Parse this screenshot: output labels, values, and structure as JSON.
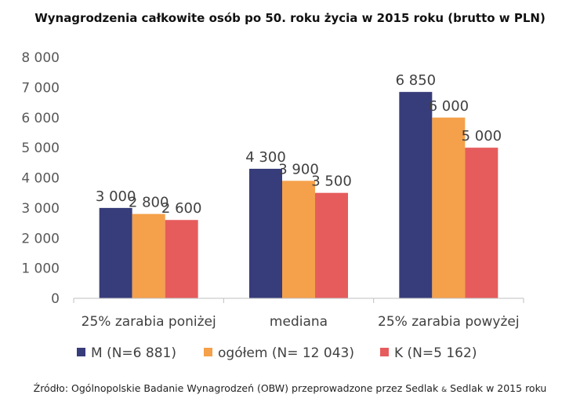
{
  "title": "Wynagrodzenia całkowite osób po 50. roku życia w 2015 roku (brutto w PLN)",
  "source": {
    "prefix": "Źródło: Ogólnopolskie Badanie Wynagrodzeń (OBW) przeprowadzone przez Sedlak ",
    "amp": "&",
    "suffix": " Sedlak w 2015 roku"
  },
  "chart_data": {
    "type": "bar",
    "title": "Wynagrodzenia całkowite osób po 50. roku życia w 2015 roku (brutto w PLN)",
    "categories": [
      "25% zarabia poniżej",
      "mediana",
      "25% zarabia powyżej"
    ],
    "series": [
      {
        "name": "M (N=6 881)",
        "values": [
          3000,
          4300,
          6850
        ],
        "labels": [
          "3 000",
          "4 300",
          "6 850"
        ],
        "color": "#373c7a"
      },
      {
        "name": "ogółem (N= 12 043)",
        "values": [
          2800,
          3900,
          6000
        ],
        "labels": [
          "2 800",
          "3 900",
          "6 000"
        ],
        "color": "#f5a04a"
      },
      {
        "name": "K (N=5 162)",
        "values": [
          2600,
          3500,
          5000
        ],
        "labels": [
          "2 600",
          "3 500",
          "5 000"
        ],
        "color": "#e65c5c"
      }
    ],
    "ylim": [
      0,
      8000
    ],
    "yticks": [
      0,
      1000,
      2000,
      3000,
      4000,
      5000,
      6000,
      7000,
      8000
    ],
    "ytick_labels": [
      "0",
      "1 000",
      "2 000",
      "3 000",
      "4 000",
      "5 000",
      "6 000",
      "7 000",
      "8 000"
    ],
    "xlabel": "",
    "ylabel": "",
    "grid": false,
    "legend": "bottom"
  }
}
